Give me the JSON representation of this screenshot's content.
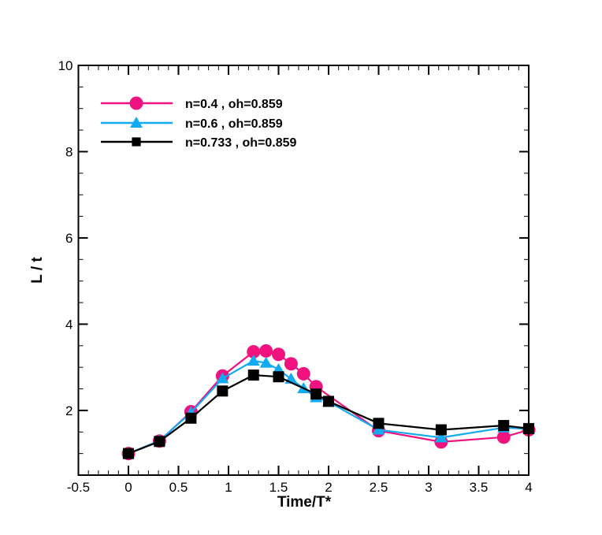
{
  "chart_data": {
    "type": "line",
    "title": "",
    "xlabel": "Time/T*",
    "ylabel": "L / t",
    "xlim": [
      -0.5,
      4
    ],
    "ylim": [
      0.5,
      10
    ],
    "xticks": [
      -0.5,
      0,
      0.5,
      1,
      1.5,
      2,
      2.5,
      3,
      3.5,
      4
    ],
    "xtick_labels": [
      "-0.5",
      "0",
      "0.5",
      "1",
      "1.5",
      "2",
      "2.5",
      "3",
      "3.5",
      "4"
    ],
    "yticks": [
      2,
      4,
      6,
      8,
      10
    ],
    "ytick_labels": [
      "2",
      "4",
      "6",
      "8",
      "10"
    ],
    "grid": false,
    "legend_position": "top-left",
    "series": [
      {
        "name": "n=0.4 , oh=0.859",
        "color": "#f0127e",
        "marker": "circle",
        "x": [
          0,
          0.31,
          0.625,
          0.94,
          1.25,
          1.375,
          1.5,
          1.625,
          1.75,
          1.875,
          2.5,
          3.125,
          3.75,
          4
        ],
        "y": [
          1.0,
          1.29,
          1.97,
          2.8,
          3.36,
          3.38,
          3.3,
          3.08,
          2.85,
          2.55,
          1.53,
          1.27,
          1.38,
          1.55
        ]
      },
      {
        "name": "n=0.6 , oh=0.859",
        "color": "#12aaf0",
        "marker": "triangle",
        "x": [
          0,
          0.31,
          0.625,
          0.94,
          1.25,
          1.375,
          1.5,
          1.625,
          1.75,
          1.875,
          2.0,
          2.5,
          3.125,
          3.75,
          4
        ],
        "y": [
          1.0,
          1.3,
          1.95,
          2.74,
          3.15,
          3.1,
          2.95,
          2.73,
          2.51,
          2.3,
          2.2,
          1.55,
          1.37,
          1.6,
          1.57
        ]
      },
      {
        "name": "n=0.733 , oh=0.859",
        "color": "#000000",
        "marker": "square",
        "x": [
          0,
          0.31,
          0.625,
          0.94,
          1.25,
          1.5,
          1.875,
          2.0,
          2.5,
          3.125,
          3.75,
          4
        ],
        "y": [
          1.0,
          1.28,
          1.82,
          2.45,
          2.82,
          2.78,
          2.38,
          2.21,
          1.7,
          1.55,
          1.65,
          1.58
        ]
      }
    ]
  }
}
